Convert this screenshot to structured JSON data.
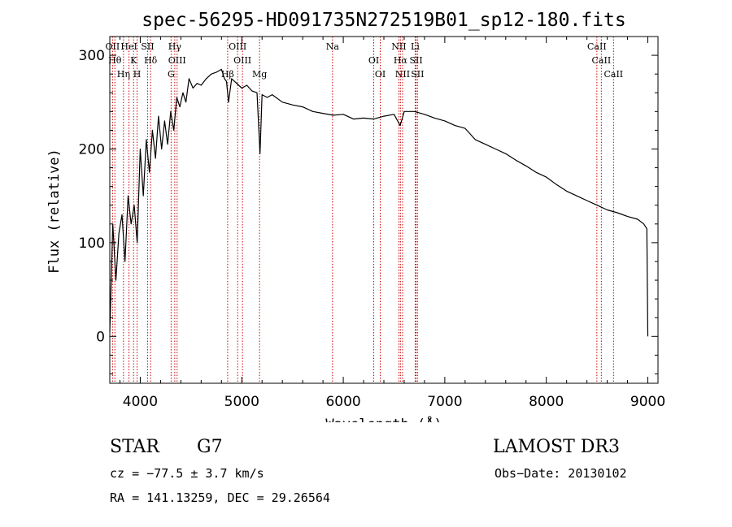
{
  "chart_data": {
    "type": "line",
    "title": "spec-56295-HD091735N272519B01_sp12-180.fits",
    "xlabel": "Wavelength (Å)",
    "ylabel": "Flux (relative)",
    "xlim": [
      3700,
      9100
    ],
    "ylim": [
      -50,
      320
    ],
    "xticks": [
      4000,
      5000,
      6000,
      7000,
      8000,
      9000
    ],
    "yticks": [
      0,
      100,
      200,
      300
    ],
    "series": [
      {
        "name": "spectrum",
        "x": [
          3700,
          3730,
          3760,
          3790,
          3820,
          3850,
          3880,
          3910,
          3940,
          3970,
          4000,
          4030,
          4060,
          4090,
          4120,
          4150,
          4180,
          4210,
          4240,
          4270,
          4300,
          4330,
          4360,
          4390,
          4420,
          4450,
          4480,
          4520,
          4560,
          4600,
          4650,
          4700,
          4750,
          4800,
          4830,
          4850,
          4870,
          4900,
          4950,
          5000,
          5050,
          5100,
          5150,
          5180,
          5200,
          5250,
          5300,
          5400,
          5500,
          5600,
          5700,
          5800,
          5900,
          6000,
          6100,
          6200,
          6300,
          6400,
          6500,
          6560,
          6600,
          6700,
          6800,
          6900,
          7000,
          7100,
          7200,
          7300,
          7400,
          7500,
          7600,
          7700,
          7800,
          7900,
          8000,
          8100,
          8200,
          8300,
          8400,
          8500,
          8600,
          8700,
          8800,
          8900,
          8960,
          8990,
          9000
        ],
        "y": [
          5,
          120,
          60,
          110,
          130,
          80,
          150,
          120,
          140,
          100,
          200,
          150,
          210,
          175,
          220,
          190,
          235,
          200,
          230,
          205,
          240,
          220,
          255,
          245,
          260,
          250,
          275,
          265,
          270,
          268,
          275,
          280,
          282,
          285,
          275,
          272,
          250,
          275,
          270,
          265,
          268,
          262,
          260,
          195,
          258,
          255,
          258,
          250,
          247,
          245,
          240,
          238,
          236,
          237,
          232,
          233,
          232,
          235,
          237,
          225,
          240,
          240,
          237,
          233,
          230,
          225,
          222,
          210,
          205,
          200,
          195,
          188,
          182,
          175,
          170,
          162,
          155,
          150,
          145,
          140,
          135,
          132,
          128,
          125,
          120,
          115,
          0
        ]
      }
    ],
    "lines": [
      {
        "x": 3727,
        "label": "OII"
      },
      {
        "x": 3750,
        "label": "Hθ"
      },
      {
        "x": 3835,
        "label": "Hη"
      },
      {
        "x": 3889,
        "label": "HeI"
      },
      {
        "x": 3934,
        "label": "K"
      },
      {
        "x": 3969,
        "label": "H"
      },
      {
        "x": 4072,
        "label": "SII"
      },
      {
        "x": 4102,
        "label": "Hδ"
      },
      {
        "x": 4304,
        "label": "G"
      },
      {
        "x": 4340,
        "label": "Hγ"
      },
      {
        "x": 4363,
        "label": "OIII"
      },
      {
        "x": 4861,
        "label": "Hβ"
      },
      {
        "x": 4959,
        "label": "OIII"
      },
      {
        "x": 5007,
        "label": "OIII"
      },
      {
        "x": 5175,
        "label": "Mg"
      },
      {
        "x": 5894,
        "label": "Na"
      },
      {
        "x": 6300,
        "label": "OI"
      },
      {
        "x": 6364,
        "label": "OI"
      },
      {
        "x": 6548,
        "label": "NII"
      },
      {
        "x": 6563,
        "label": "Hα"
      },
      {
        "x": 6584,
        "label": "NII"
      },
      {
        "x": 6708,
        "label": "Li"
      },
      {
        "x": 6717,
        "label": "SII"
      },
      {
        "x": 6731,
        "label": "SII"
      },
      {
        "x": 8498,
        "label": "CaII"
      },
      {
        "x": 8542,
        "label": "CaII"
      },
      {
        "x": 8662,
        "label": "CaII"
      }
    ]
  },
  "info": {
    "class": "STAR",
    "subclass": "G7",
    "survey": "LAMOST DR3",
    "cz": "cz = −77.5 ± 3.7 km/s",
    "obs_date": "Obs−Date: 20130102",
    "coords": "RA = 141.13259, DEC =  29.26564"
  },
  "colors": {
    "spectrum": "#000000",
    "lines": "#cc0000",
    "axes": "#000000"
  }
}
